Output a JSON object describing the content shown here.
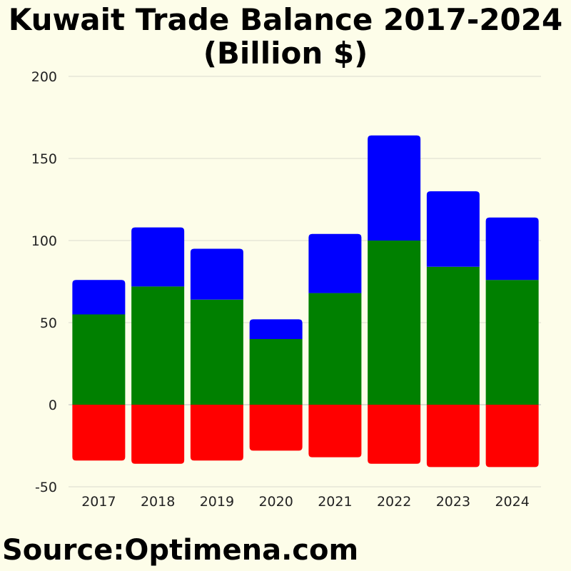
{
  "chart_data": {
    "type": "bar",
    "stacked": true,
    "title": "Kuwait Trade Balance 2017-2024",
    "subtitle": "(Billion $)",
    "categories": [
      "2017",
      "2018",
      "2019",
      "2020",
      "2021",
      "2022",
      "2023",
      "2024"
    ],
    "series": [
      {
        "color": "#008000",
        "values": [
          55,
          72,
          64,
          40,
          68,
          100,
          84,
          76
        ]
      },
      {
        "color": "#0000ff",
        "values": [
          21,
          36,
          31,
          12,
          36,
          64,
          46,
          38
        ]
      },
      {
        "color": "#ff0000",
        "values": [
          -34,
          -36,
          -34,
          -28,
          -32,
          -36,
          -38,
          -38
        ]
      }
    ],
    "ylim": [
      -50,
      200
    ],
    "yticks": [
      "-50",
      "0",
      "50",
      "100",
      "150",
      "200"
    ],
    "grid": true,
    "legend": "none"
  },
  "source": "Source:Optimena.com"
}
